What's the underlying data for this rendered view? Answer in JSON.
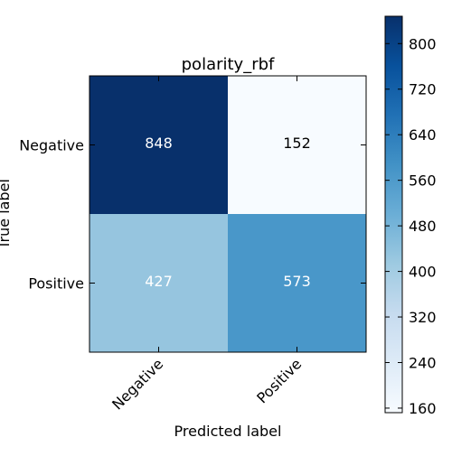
{
  "chart_data": {
    "type": "heatmap",
    "title": "polarity_rbf",
    "xlabel": "Predicted label",
    "ylabel": "True label",
    "x_categories": [
      "Negative",
      "Positive"
    ],
    "y_categories": [
      "Negative",
      "Positive"
    ],
    "values": [
      [
        848,
        152
      ],
      [
        427,
        573
      ]
    ],
    "colormap": "Blues",
    "colorbar": {
      "range": [
        152,
        848
      ],
      "ticks": [
        160,
        240,
        320,
        400,
        480,
        560,
        640,
        720,
        800
      ]
    }
  }
}
